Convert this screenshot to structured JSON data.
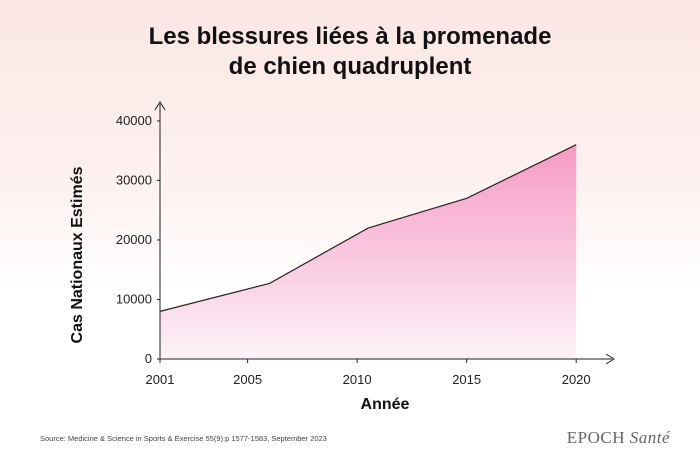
{
  "title_line1": "Les blessures liées à la promenade",
  "title_line2": "de chien quadruplent",
  "source": "Source: Medicine & Science in Sports & Exercise 55(9):p 1577-1583, September 2023",
  "brand": {
    "name": "EPOCH",
    "section": "Santé"
  },
  "colors": {
    "fill_top": "#f59ac4",
    "fill_bottom": "#fdf3f8",
    "line": "#2b2424",
    "accent_bg": "#fbe7e5"
  },
  "chart_data": {
    "type": "area",
    "title": "Les blessures liées à la promenade de chien quadruplent",
    "xlabel": "Année",
    "ylabel": "Cas Nationaux Estimés",
    "x": [
      2001,
      2006,
      2010.5,
      2015,
      2020
    ],
    "y": [
      8000,
      12700,
      22000,
      27000,
      36000
    ],
    "xlim": [
      2001,
      2022
    ],
    "ylim": [
      0,
      42000
    ],
    "xticks": [
      2001,
      2005,
      2010,
      2015,
      2020
    ],
    "yticks": [
      0,
      10000,
      20000,
      30000,
      40000
    ],
    "xtick_labels": [
      "2001",
      "2005",
      "2010",
      "2015",
      "2020"
    ],
    "ytick_labels": [
      "0",
      "10000",
      "20000",
      "30000",
      "40000"
    ],
    "grid": false,
    "legend": "none"
  }
}
